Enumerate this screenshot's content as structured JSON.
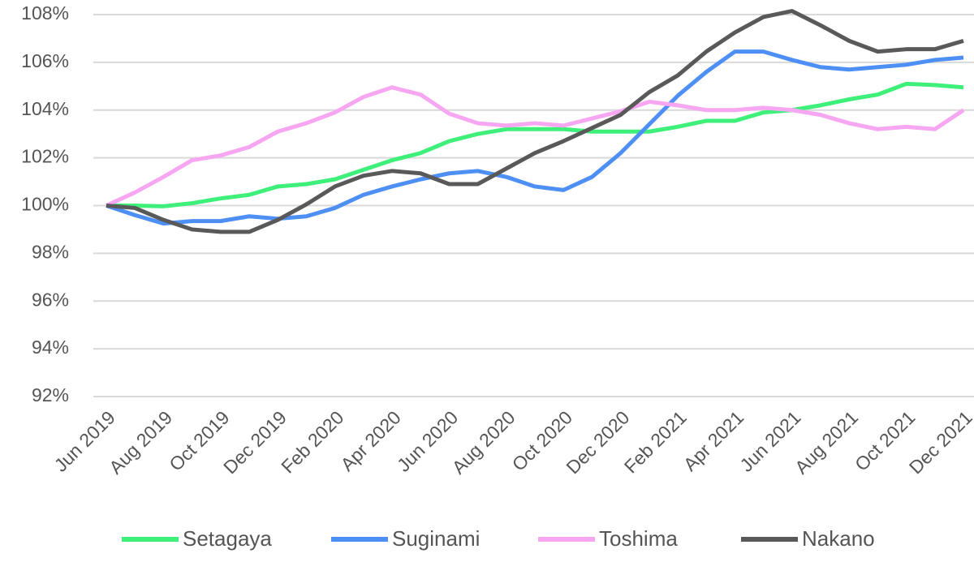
{
  "chart_data": {
    "type": "line",
    "categories": [
      "Jun 2019",
      null,
      "Aug 2019",
      null,
      "Oct 2019",
      null,
      "Dec 2019",
      null,
      "Feb 2020",
      null,
      "Apr 2020",
      null,
      "Jun 2020",
      null,
      "Aug 2020",
      null,
      "Oct 2020",
      null,
      "Dec 2020",
      null,
      "Feb 2021",
      null,
      "Apr 2021",
      null,
      "Jun 2021",
      null,
      "Aug 2021",
      null,
      "Oct 2021",
      null,
      "Dec 2021"
    ],
    "series": [
      {
        "name": "Setagaya",
        "color": "#3ef07a",
        "values": [
          100,
          100.0,
          99.97,
          100.1,
          100.3,
          100.45,
          100.8,
          100.9,
          101.1,
          101.5,
          101.9,
          102.2,
          102.7,
          103.0,
          103.2,
          103.2,
          103.2,
          103.1,
          103.1,
          103.1,
          103.3,
          103.55,
          103.55,
          103.9,
          104.0,
          104.2,
          104.45,
          104.65,
          105.1,
          105.05,
          104.95
        ]
      },
      {
        "name": "Suginami",
        "color": "#4d8ff5",
        "values": [
          100,
          99.6,
          99.25,
          99.35,
          99.35,
          99.55,
          99.45,
          99.55,
          99.9,
          100.45,
          100.8,
          101.1,
          101.35,
          101.45,
          101.2,
          100.8,
          100.65,
          101.2,
          102.2,
          103.4,
          104.6,
          105.6,
          106.45,
          106.45,
          106.1,
          105.8,
          105.7,
          105.8,
          105.9,
          106.1,
          106.2
        ]
      },
      {
        "name": "Toshima",
        "color": "#f7a6f2",
        "values": [
          100,
          100.55,
          101.2,
          101.9,
          102.1,
          102.45,
          103.1,
          103.45,
          103.9,
          104.55,
          104.95,
          104.65,
          103.85,
          103.45,
          103.35,
          103.45,
          103.35,
          103.65,
          103.95,
          104.35,
          104.2,
          104.0,
          104.0,
          104.1,
          104.0,
          103.8,
          103.45,
          103.2,
          103.3,
          103.2,
          104.0
        ]
      },
      {
        "name": "Nakano",
        "color": "#595959",
        "values": [
          100,
          99.9,
          99.4,
          99.0,
          98.9,
          98.9,
          99.4,
          100.05,
          100.8,
          101.25,
          101.45,
          101.35,
          100.9,
          100.9,
          101.55,
          102.2,
          102.7,
          103.25,
          103.8,
          104.75,
          105.45,
          106.45,
          107.25,
          107.9,
          108.15,
          107.55,
          106.9,
          106.45,
          106.55,
          106.55,
          106.9
        ]
      }
    ],
    "ylim": [
      92,
      108
    ],
    "yticks": [
      {
        "value": 92,
        "label": "92%"
      },
      {
        "value": 94,
        "label": "94%"
      },
      {
        "value": 96,
        "label": "96%"
      },
      {
        "value": 98,
        "label": "98%"
      },
      {
        "value": 100,
        "label": "100%"
      },
      {
        "value": 102,
        "label": "102%"
      },
      {
        "value": 104,
        "label": "104%"
      },
      {
        "value": 106,
        "label": "106%"
      },
      {
        "value": 108,
        "label": "108%"
      }
    ],
    "grid": true
  }
}
